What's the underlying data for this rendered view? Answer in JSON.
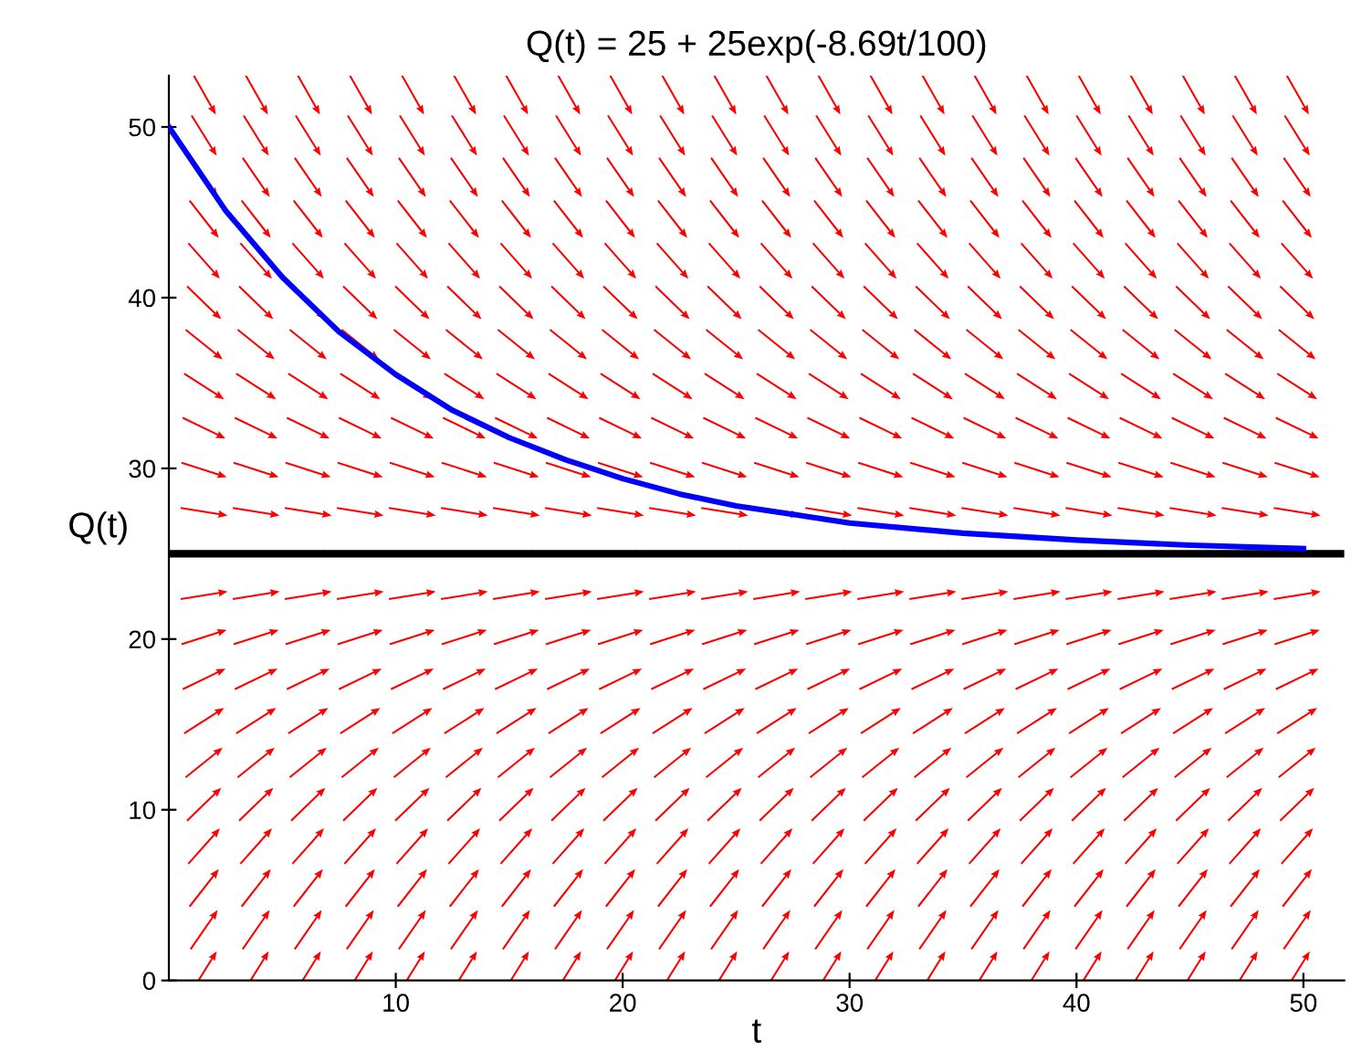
{
  "chart_data": {
    "type": "line",
    "title": "Q(t) = 25 + 25exp(-8.69t/100)",
    "xlabel": "t",
    "ylabel": "Q(t)",
    "xlim": [
      0,
      51.8
    ],
    "ylim": [
      0,
      53
    ],
    "xticks": [
      10,
      20,
      30,
      40,
      50
    ],
    "yticks": [
      0,
      10,
      20,
      30,
      40,
      50
    ],
    "grid": false,
    "legend": false,
    "series": [
      {
        "color": "#0000ff",
        "x": [
          0,
          2.5,
          5,
          7.5,
          10,
          12.5,
          15,
          17.5,
          20,
          22.5,
          25,
          27.5,
          30,
          35,
          40,
          45,
          50
        ],
        "values": [
          50,
          45.1,
          41.2,
          38.0,
          35.5,
          33.4,
          31.8,
          30.5,
          29.4,
          28.5,
          27.8,
          27.3,
          26.8,
          26.2,
          25.8,
          25.5,
          25.3
        ]
      }
    ],
    "ref_lines": [
      {
        "axis": "y",
        "value": 25,
        "color": "#000000",
        "line_style": "solid"
      }
    ]
  }
}
